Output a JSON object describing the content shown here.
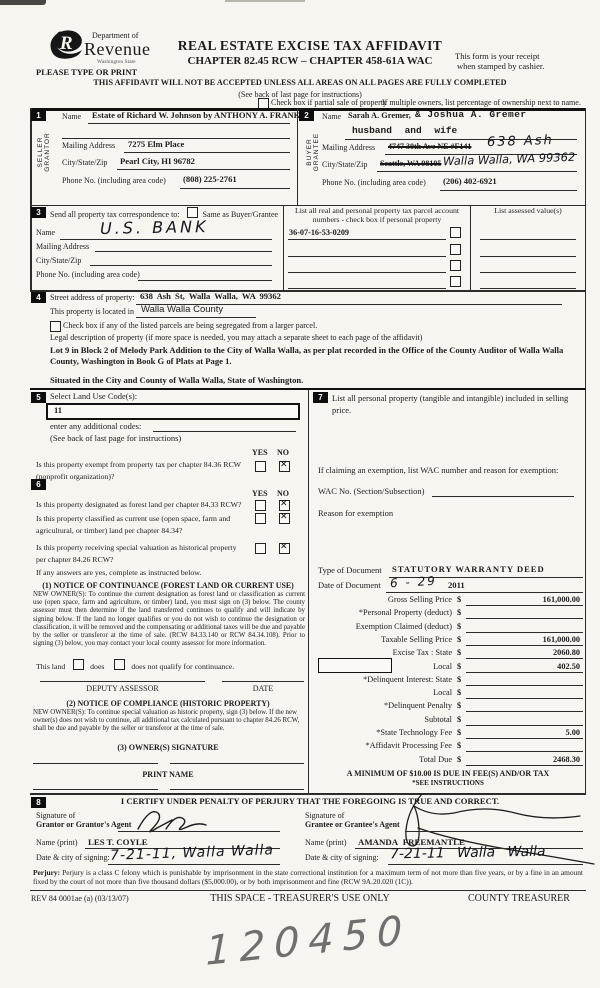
{
  "header": {
    "logo_dept": "Department of",
    "logo_name": "Revenue",
    "logo_state": "Washington State",
    "please": "PLEASE TYPE OR PRINT",
    "title": "REAL ESTATE EXCISE TAX AFFIDAVIT",
    "subtitle": "CHAPTER 82.45 RCW – CHAPTER 458-61A WAC",
    "receipt1": "This form is your receipt",
    "receipt2": "when stamped by cashier.",
    "warning": "THIS AFFIDAVIT WILL NOT BE ACCEPTED UNLESS ALL AREAS ON ALL PAGES ARE FULLY COMPLETED",
    "see_back": "(See back of last page for instructions)",
    "partial": "Check box if partial sale of property",
    "multiple": "If multiple owners, list percentage of ownership next to name.",
    "partial_checked": false
  },
  "seller": {
    "num": "1",
    "side1": "SELLER",
    "side2": "GRANTOR",
    "name_label": "Name",
    "name_value": "Estate of Richard W. Johnson by ANTHONY A. FRANK",
    "mailing_label": "Mailing Address",
    "mailing_value": "7275 Elm Place",
    "csz_label": "City/State/Zip",
    "csz_value": "Pearl City, HI 96782",
    "phone_label": "Phone No. (including area code)",
    "phone_value": "(808) 225-2761"
  },
  "buyer": {
    "num": "2",
    "side1": "BUYER",
    "side2": "GRANTEE",
    "name_label": "Name",
    "name_typed1": "Sarah A. Gremer,",
    "name_typed2": "& Joshua A. Gremer",
    "name_typed3": "husband and wife",
    "mailing_label": "Mailing Address",
    "mailing_struck": "4747 30th Ave NE #F141",
    "mailing_hand": "638 Ash",
    "csz_label": "City/State/Zip",
    "csz_struck": "Seattle, WA 98105",
    "csz_hand": "Walla Walla, WA 99362",
    "phone_label": "Phone No. (including area code)",
    "phone_value": "(206) 402-6921"
  },
  "section3": {
    "num": "3",
    "send_label": "Send all property tax correspondence to:",
    "same_as": "Same as Buyer/Grantee",
    "same_as_checked": false,
    "name_label": "Name",
    "name_hand": "U.S. BANK",
    "mailing_label": "Mailing Address",
    "csz_label": "City/State/Zip",
    "phone_label": "Phone No. (including area code)",
    "parcel_header1": "List all real and personal property tax parcel account",
    "parcel_header2": "numbers - check box if personal property",
    "parcel_value": "36-07-16-53-0209",
    "parcel_checked": [
      false,
      false,
      false,
      false
    ],
    "assessed_header": "List assessed value(s)"
  },
  "section4": {
    "num": "4",
    "street_label": "Street address of property:",
    "street_value": "638 Ash St, Walla Walla, WA 99362",
    "located_label": "This property is located in",
    "located_value": "Walla Walla County",
    "segregate": "Check box if any of the listed parcels are being segregated from a larger parcel.",
    "segregate_checked": false,
    "legal_label": "Legal description of property (if more space is needed, you may attach a separate sheet to each page of the affidavit)",
    "legal_text": "Lot 9 in Block 2 of Melody Park Addition to the City of Walla Walla, as per plat recorded in the Office of the County Auditor of Walla Walla County, Washington in Book G of Plats at Page 1.",
    "situated": "Situated in the City and County of Walla Walla, State of Washington."
  },
  "section5": {
    "num": "5",
    "select_label": "Select Land Use Code(s):",
    "code_value": "11",
    "additional": "enter any additional codes:",
    "see_back": "(See back of last page for instructions)",
    "yes": "YES",
    "no": "NO",
    "q_exempt": "Is this property exempt from property tax per chapter 84.36 RCW (nonprofit organization)?",
    "exempt_yes": false,
    "exempt_no": true
  },
  "section6": {
    "num": "6",
    "yes": "YES",
    "no": "NO",
    "q_forest": "Is this property designated as forest land per chapter 84.33 RCW?",
    "forest_yes": false,
    "forest_no": true,
    "q_current": "Is this property classified as current use (open space, farm and agricultural, or timber) land per chapter 84.34?",
    "current_yes": false,
    "current_no": true,
    "q_historic": "Is this property receiving special valuation as historical property per chapter 84.26 RCW?",
    "historic_yes": false,
    "historic_no": true,
    "if_yes": "If any answers are yes, complete as instructed below.",
    "n1_title": "(1) NOTICE OF CONTINUANCE (FOREST LAND OR CURRENT USE)",
    "n1_text": "NEW OWNER(S): To continue the current designation as forest land or classification as current use (open space, farm and agriculture, or timber) land, you must sign on (3) below. The county assessor must then determine if the land transferred continues to qualify and will indicate by signing below. If the land no longer qualifies or you do not wish to continue the designation or classification, it will be removed and the compensating or additional taxes will be due and payable by the seller or transferor at the time of sale. (RCW 84.33.140 or RCW 84.34.108). Prior to signing (3) below, you may contact your local county assessor for more information.",
    "qualify_pre": "This land",
    "qualify_does": "does",
    "qualify_doesnot": "does not  qualify for continuance.",
    "does_checked": false,
    "doesnot_checked": false,
    "deputy": "DEPUTY ASSESSOR",
    "date": "DATE",
    "n2_title": "(2) NOTICE OF COMPLIANCE (HISTORIC PROPERTY)",
    "n2_text": "NEW OWNER(S): To continue special valuation as historic property, sign (3) below. If the new owner(s) does not wish to continue, all additional tax calculated pursuant to chapter 84.26 RCW, shall be due and payable by the seller or transferor at the time of sale.",
    "owners_sig": "(3) OWNER(S) SIGNATURE",
    "print_name": "PRINT NAME"
  },
  "section7": {
    "num": "7",
    "list_pp": "List all personal property (tangible and intangible) included in selling price.",
    "claiming": "If claiming an exemption, list WAC number and reason for exemption:",
    "wac": "WAC No. (Section/Subsection)",
    "reason": "Reason for exemption",
    "type_label": "Type of Document",
    "type_value": "STATUTORY WARRANTY DEED",
    "date_label": "Date of Document",
    "date_hand": "6 - 29",
    "date_year": "2011"
  },
  "money": {
    "dollar": "$",
    "rows": [
      {
        "label": "Gross Selling Price",
        "value": "161,000.00"
      },
      {
        "label": "*Personal Property (deduct)",
        "value": ""
      },
      {
        "label": "Exemption Claimed (deduct)",
        "value": ""
      },
      {
        "label": "Taxable Selling Price",
        "value": "161,000.00"
      },
      {
        "label": "Excise Tax : State",
        "value": "2060.80"
      },
      {
        "label": "Local",
        "value": "402.50"
      },
      {
        "label": "*Delinquent Interest: State",
        "value": ""
      },
      {
        "label": "Local",
        "value": ""
      },
      {
        "label": "*Delinquent Penalty",
        "value": ""
      },
      {
        "label": "Subtotal",
        "value": ""
      },
      {
        "label": "*State Technology Fee",
        "value": "5.00"
      },
      {
        "label": "*Affidavit Processing Fee",
        "value": ""
      },
      {
        "label": "Total Due",
        "value": "2468.30"
      }
    ],
    "min_due1": "A MINIMUM OF $10.00 IS DUE IN FEE(S) AND/OR TAX",
    "min_due2": "*SEE INSTRUCTIONS"
  },
  "section8": {
    "num": "8",
    "certify": "I CERTIFY UNDER PENALTY OF PERJURY THAT THE FOREGOING IS TRUE AND CORRECT.",
    "sig_of": "Signature of",
    "grantor_agent": "Grantor or Grantor's Agent",
    "grantee_agent": "Grantee or Grantee's Agent",
    "name_print": "Name (print)",
    "grantor_name": "LES T. COYLE",
    "grantee_name": "AMANDA FREEMANTLE",
    "date_city": "Date & city of signing:",
    "grantor_date_hand": "7-21-11, Walla Walla",
    "grantee_date_hand": "7-21-11  Walla Walla"
  },
  "perjury": {
    "bold": "Perjury:",
    "text": "Perjury is a class C felony which is punishable by imprisonment in the state correctional institution for a maximum term of not more than five years, or by a fine in an amount fixed by the court of not more than five thousand dollars ($5,000.00), or by both imprisonment and fine (RCW 9A.20.020 (1C))."
  },
  "footer": {
    "rev": "REV 84 0001ae (a) (03/13/07)",
    "center": "THIS SPACE - TREASURER'S USE ONLY",
    "right": "COUNTY TREASURER"
  },
  "stamp": "120450"
}
